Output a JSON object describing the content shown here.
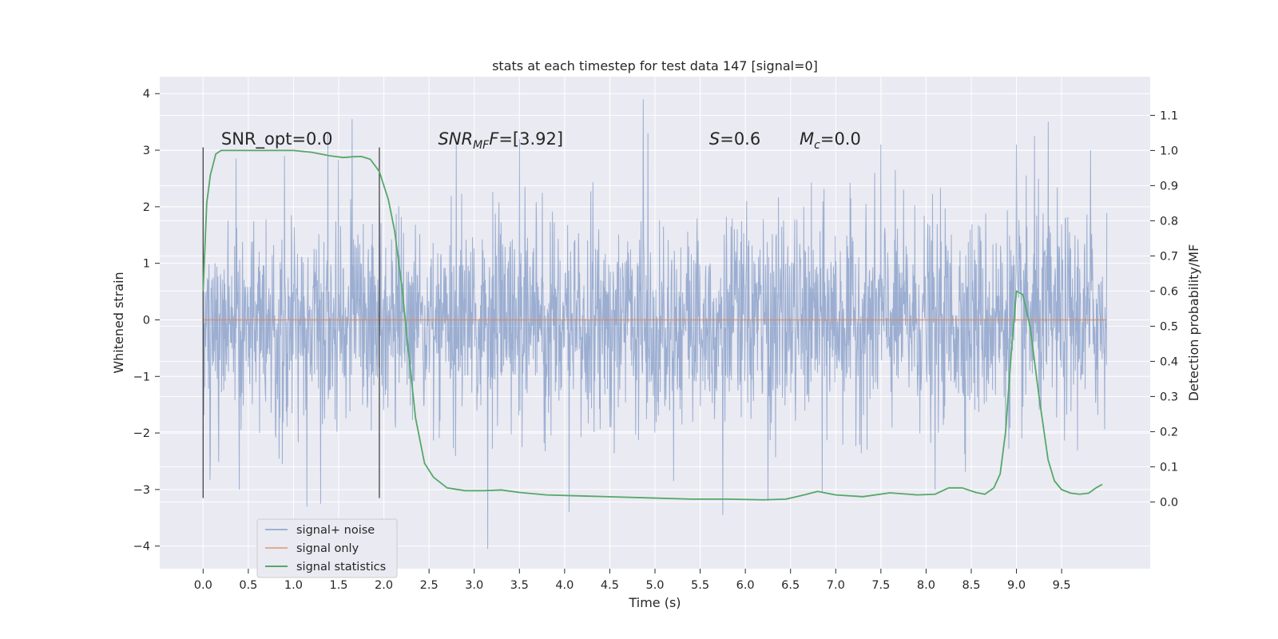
{
  "chart_data": {
    "type": "line",
    "title": "stats at each timestep for test data 147 [signal=0]",
    "xlabel": "Time (s)",
    "ylabel": "Whitened strain",
    "y2label": "Detection probability/MF",
    "xlim": [
      -0.48,
      10.48
    ],
    "ylim": [
      -4.4,
      4.3
    ],
    "y2lim": [
      -0.19,
      1.21
    ],
    "xticks": [
      0.0,
      0.5,
      1.0,
      1.5,
      2.0,
      2.5,
      3.0,
      3.5,
      4.0,
      4.5,
      5.0,
      5.5,
      6.0,
      6.5,
      7.0,
      7.5,
      8.0,
      8.5,
      9.0,
      9.5
    ],
    "yticks": [
      -4,
      -3,
      -2,
      -1,
      0,
      1,
      2,
      3,
      4
    ],
    "y2ticks": [
      0.0,
      0.1,
      0.2,
      0.3,
      0.4,
      0.5,
      0.6,
      0.7,
      0.8,
      0.9,
      1.0,
      1.1
    ],
    "grid": true,
    "legend_position": "lower-left",
    "background": "#eaeaf2",
    "series": [
      {
        "name": "signal+ noise",
        "axis": "left",
        "color": "#4c72b0",
        "opacity": 0.5,
        "t_range": [
          0.0,
          10.0
        ],
        "envelope_p95": 1.75,
        "peaks": [
          {
            "x": 0.9,
            "y": 2.9
          },
          {
            "x": 1.15,
            "y": 3.65
          },
          {
            "x": 1.38,
            "y": 3.3
          },
          {
            "x": 1.65,
            "y": 3.55
          },
          {
            "x": 2.8,
            "y": 3.1
          },
          {
            "x": 3.5,
            "y": 3.2
          },
          {
            "x": 4.87,
            "y": 3.9
          },
          {
            "x": 4.92,
            "y": 3.3
          },
          {
            "x": 7.5,
            "y": 3.1
          },
          {
            "x": 9.0,
            "y": 3.1
          },
          {
            "x": 9.2,
            "y": 3.25
          },
          {
            "x": 9.35,
            "y": 3.5
          },
          {
            "x": 9.82,
            "y": 3.0
          }
        ],
        "troughs": [
          {
            "x": 0.4,
            "y": -3.0
          },
          {
            "x": 1.15,
            "y": -3.3
          },
          {
            "x": 1.3,
            "y": -3.25
          },
          {
            "x": 3.15,
            "y": -4.05
          },
          {
            "x": 4.05,
            "y": -3.4
          },
          {
            "x": 5.75,
            "y": -3.45
          },
          {
            "x": 6.25,
            "y": -3.2
          },
          {
            "x": 6.85,
            "y": -3.05
          },
          {
            "x": 8.1,
            "y": -3.0
          }
        ]
      },
      {
        "name": "signal only",
        "axis": "left",
        "color": "#dd8452",
        "x": [
          0.0,
          10.0
        ],
        "y": [
          0.0,
          0.0
        ]
      },
      {
        "name": "signal statistics",
        "axis": "right",
        "color": "#55a868",
        "x": [
          0.0,
          0.04,
          0.08,
          0.14,
          0.2,
          0.3,
          0.5,
          0.8,
          1.0,
          1.2,
          1.4,
          1.55,
          1.65,
          1.75,
          1.85,
          1.95,
          2.05,
          2.12,
          2.2,
          2.28,
          2.35,
          2.45,
          2.55,
          2.7,
          2.9,
          3.1,
          3.3,
          3.5,
          3.8,
          4.2,
          4.6,
          5.0,
          5.4,
          5.8,
          6.2,
          6.45,
          6.65,
          6.8,
          7.0,
          7.3,
          7.6,
          7.9,
          8.1,
          8.25,
          8.4,
          8.55,
          8.65,
          8.75,
          8.82,
          8.88,
          8.95,
          9.0,
          9.07,
          9.15,
          9.25,
          9.35,
          9.42,
          9.5,
          9.6,
          9.7,
          9.8,
          9.88,
          9.95
        ],
        "y": [
          0.6,
          0.85,
          0.93,
          0.99,
          1.0,
          1.0,
          1.0,
          1.0,
          1.0,
          0.995,
          0.985,
          0.98,
          0.982,
          0.983,
          0.975,
          0.94,
          0.86,
          0.77,
          0.61,
          0.41,
          0.24,
          0.11,
          0.07,
          0.04,
          0.032,
          0.032,
          0.034,
          0.027,
          0.02,
          0.017,
          0.014,
          0.011,
          0.008,
          0.008,
          0.006,
          0.008,
          0.02,
          0.03,
          0.02,
          0.015,
          0.026,
          0.02,
          0.022,
          0.04,
          0.04,
          0.027,
          0.022,
          0.04,
          0.08,
          0.2,
          0.45,
          0.6,
          0.59,
          0.5,
          0.3,
          0.12,
          0.06,
          0.035,
          0.025,
          0.022,
          0.025,
          0.04,
          0.05
        ]
      }
    ],
    "vlines": [
      {
        "x": 0.0,
        "y": [
          -3.15,
          3.05
        ]
      },
      {
        "x": 1.95,
        "y": [
          -3.15,
          3.05
        ]
      }
    ],
    "annotations": [
      {
        "text": "SNR_opt=0.0",
        "x": 0.2,
        "y": 3.1
      },
      {
        "text": "SNR",
        "sub": "MF",
        "suffix": "F=[3.92]",
        "x": 2.6,
        "y": 3.1,
        "italic": true
      },
      {
        "text": "S",
        "suffix": "=0.6",
        "x": 5.6,
        "y": 3.1,
        "italic": true
      },
      {
        "text": "M",
        "sub": "c",
        "suffix": "=0.0",
        "x": 6.6,
        "y": 3.1,
        "italic": true
      }
    ]
  }
}
